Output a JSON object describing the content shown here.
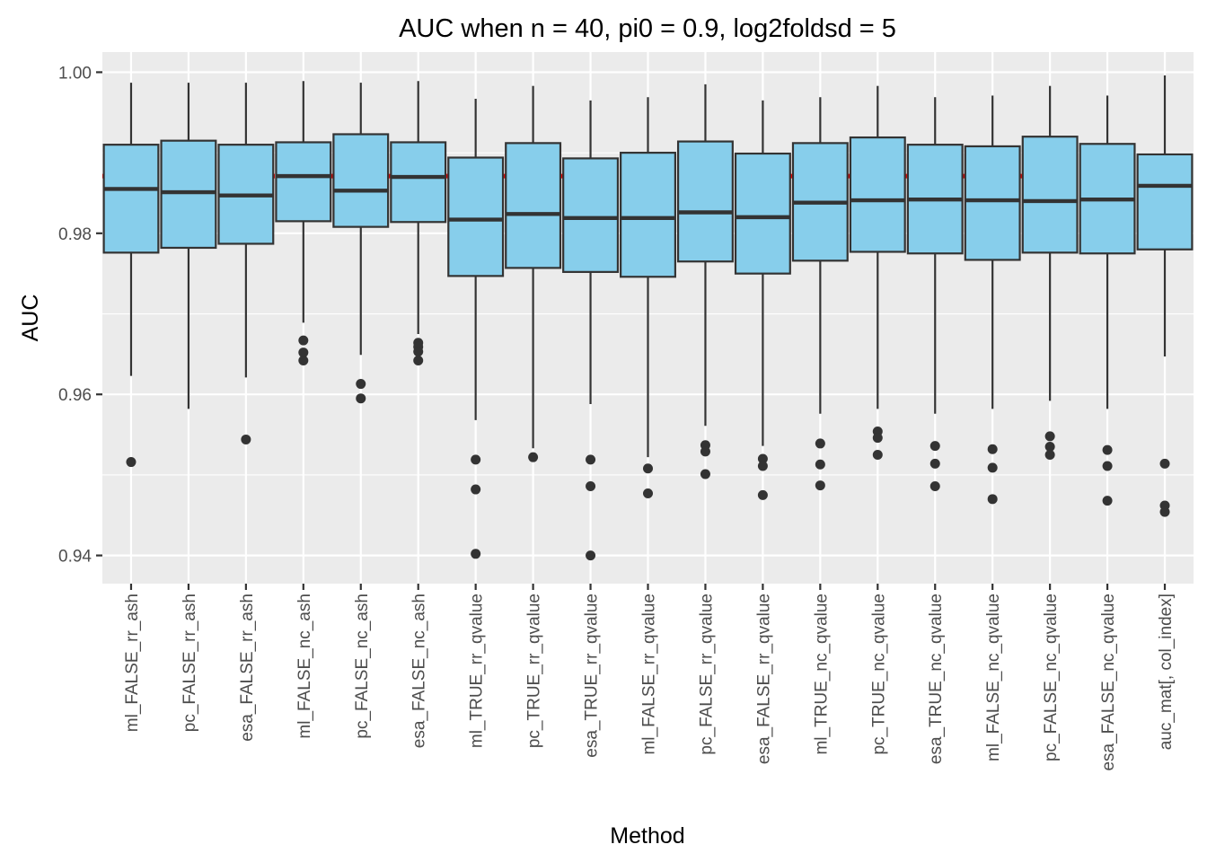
{
  "chart_data": {
    "type": "box",
    "title": "AUC when n = 40, pi0 = 0.9, log2foldsd = 5",
    "xlabel": "Method",
    "ylabel": "AUC",
    "ylim": [
      0.9365,
      1.0025
    ],
    "yticks": [
      0.94,
      0.96,
      0.98,
      1.0
    ],
    "ytick_labels": [
      "0.94",
      "0.96",
      "0.98",
      "1.00"
    ],
    "grid": true,
    "reference_line": {
      "y": 0.9871,
      "style": "dashed",
      "color": "#ff0000"
    },
    "colors": {
      "box_fill": "#87ceeb",
      "box_stroke": "#333333",
      "panel": "#ebebeb",
      "grid": "#ffffff"
    },
    "categories": [
      "ml_FALSE_rr_ash",
      "pc_FALSE_rr_ash",
      "esa_FALSE_rr_ash",
      "ml_FALSE_nc_ash",
      "pc_FALSE_nc_ash",
      "esa_FALSE_nc_ash",
      "ml_TRUE_rr_qvalue",
      "pc_TRUE_rr_qvalue",
      "esa_TRUE_rr_qvalue",
      "ml_FALSE_rr_qvalue",
      "pc_FALSE_rr_qvalue",
      "esa_FALSE_rr_qvalue",
      "ml_TRUE_nc_qvalue",
      "pc_TRUE_nc_qvalue",
      "esa_TRUE_nc_qvalue",
      "ml_FALSE_nc_qvalue",
      "pc_FALSE_nc_qvalue",
      "esa_FALSE_nc_qvalue",
      "auc_mat[, col_index]"
    ],
    "boxes": [
      {
        "whisker_low": 0.9623,
        "q1": 0.9776,
        "median": 0.9855,
        "q3": 0.991,
        "whisker_high": 0.9987,
        "outliers": [
          0.9516
        ]
      },
      {
        "whisker_low": 0.9582,
        "q1": 0.9782,
        "median": 0.9851,
        "q3": 0.9915,
        "whisker_high": 0.9987,
        "outliers": []
      },
      {
        "whisker_low": 0.9621,
        "q1": 0.9787,
        "median": 0.9847,
        "q3": 0.991,
        "whisker_high": 0.9987,
        "outliers": [
          0.9544
        ]
      },
      {
        "whisker_low": 0.9689,
        "q1": 0.9815,
        "median": 0.9871,
        "q3": 0.9913,
        "whisker_high": 0.9989,
        "outliers": [
          0.9667,
          0.9652,
          0.9642
        ]
      },
      {
        "whisker_low": 0.9649,
        "q1": 0.9808,
        "median": 0.9853,
        "q3": 0.9923,
        "whisker_high": 0.9987,
        "outliers": [
          0.9613,
          0.9595
        ]
      },
      {
        "whisker_low": 0.9675,
        "q1": 0.9814,
        "median": 0.987,
        "q3": 0.9913,
        "whisker_high": 0.9989,
        "outliers": [
          0.9664,
          0.9659,
          0.9653,
          0.9642
        ]
      },
      {
        "whisker_low": 0.9568,
        "q1": 0.9747,
        "median": 0.9817,
        "q3": 0.9894,
        "whisker_high": 0.9967,
        "outliers": [
          0.9519,
          0.9482,
          0.9402
        ]
      },
      {
        "whisker_low": 0.9533,
        "q1": 0.9757,
        "median": 0.9824,
        "q3": 0.9912,
        "whisker_high": 0.9983,
        "outliers": [
          0.9522
        ]
      },
      {
        "whisker_low": 0.9588,
        "q1": 0.9752,
        "median": 0.9819,
        "q3": 0.9893,
        "whisker_high": 0.9965,
        "outliers": [
          0.9519,
          0.9486,
          0.94
        ]
      },
      {
        "whisker_low": 0.9522,
        "q1": 0.9746,
        "median": 0.9819,
        "q3": 0.99,
        "whisker_high": 0.9969,
        "outliers": [
          0.9508,
          0.9477
        ]
      },
      {
        "whisker_low": 0.9561,
        "q1": 0.9765,
        "median": 0.9826,
        "q3": 0.9914,
        "whisker_high": 0.9985,
        "outliers": [
          0.9537,
          0.9529,
          0.9501
        ]
      },
      {
        "whisker_low": 0.9536,
        "q1": 0.975,
        "median": 0.982,
        "q3": 0.9899,
        "whisker_high": 0.9965,
        "outliers": [
          0.952,
          0.9511,
          0.9475
        ]
      },
      {
        "whisker_low": 0.9576,
        "q1": 0.9766,
        "median": 0.9838,
        "q3": 0.9912,
        "whisker_high": 0.9969,
        "outliers": [
          0.9539,
          0.9513,
          0.9487
        ]
      },
      {
        "whisker_low": 0.9582,
        "q1": 0.9777,
        "median": 0.9841,
        "q3": 0.9919,
        "whisker_high": 0.9983,
        "outliers": [
          0.9554,
          0.9546,
          0.9525
        ]
      },
      {
        "whisker_low": 0.9576,
        "q1": 0.9775,
        "median": 0.9842,
        "q3": 0.991,
        "whisker_high": 0.9969,
        "outliers": [
          0.9536,
          0.9514,
          0.9486
        ]
      },
      {
        "whisker_low": 0.9582,
        "q1": 0.9767,
        "median": 0.9841,
        "q3": 0.9908,
        "whisker_high": 0.9971,
        "outliers": [
          0.9532,
          0.9509,
          0.947
        ]
      },
      {
        "whisker_low": 0.9592,
        "q1": 0.9776,
        "median": 0.984,
        "q3": 0.992,
        "whisker_high": 0.9983,
        "outliers": [
          0.9548,
          0.9535,
          0.9525
        ]
      },
      {
        "whisker_low": 0.9582,
        "q1": 0.9775,
        "median": 0.9842,
        "q3": 0.9911,
        "whisker_high": 0.9971,
        "outliers": [
          0.9531,
          0.9511,
          0.9468
        ]
      },
      {
        "whisker_low": 0.9647,
        "q1": 0.978,
        "median": 0.9859,
        "q3": 0.9898,
        "whisker_high": 0.9996,
        "outliers": [
          0.9514,
          0.9462,
          0.9454
        ]
      }
    ]
  }
}
